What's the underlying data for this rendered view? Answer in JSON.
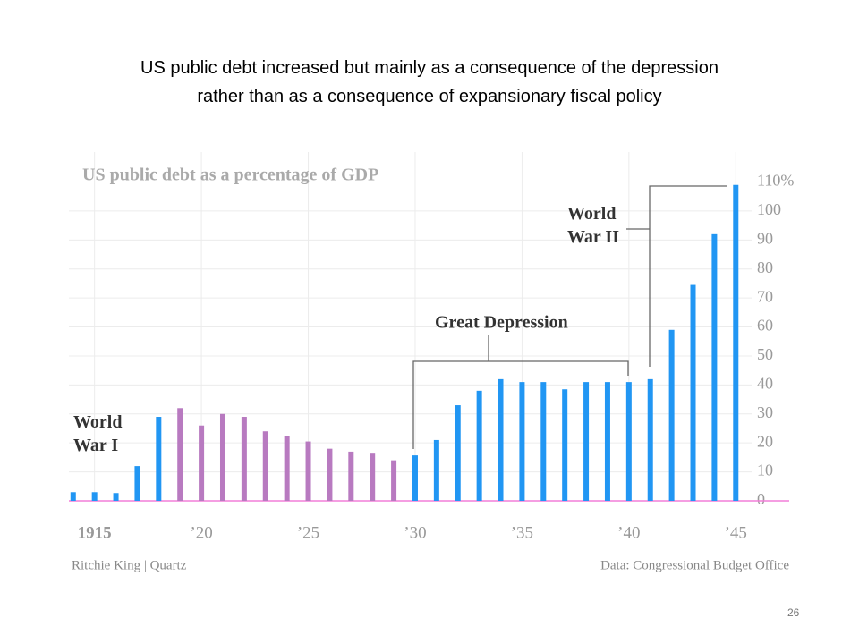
{
  "slide_title": [
    "US public debt increased but mainly as a consequence of the depression",
    "rather than as a consequence of expansionary fiscal policy"
  ],
  "page_number": "26",
  "chart_data": {
    "type": "bar",
    "title": "US public debt as a percentage of GDP",
    "source_left": "Ritchie King | Quartz",
    "source_right": "Data: Congressional Budget Office",
    "x": [
      1914,
      1915,
      1916,
      1917,
      1918,
      1919,
      1920,
      1921,
      1922,
      1923,
      1924,
      1925,
      1926,
      1927,
      1928,
      1929,
      1930,
      1931,
      1932,
      1933,
      1934,
      1935,
      1936,
      1937,
      1938,
      1939,
      1940,
      1941,
      1942,
      1943,
      1944,
      1945
    ],
    "values": [
      3,
      3,
      2.7,
      12,
      29,
      32,
      26,
      30,
      29,
      24,
      22.5,
      20.5,
      18,
      17,
      16.3,
      14,
      15.7,
      21,
      33,
      38,
      42,
      41,
      41,
      38.5,
      41,
      41,
      41,
      42,
      59,
      74.5,
      92,
      109
    ],
    "colors": [
      "#2196f3",
      "#2196f3",
      "#2196f3",
      "#2196f3",
      "#2196f3",
      "#b87ac0",
      "#b87ac0",
      "#b87ac0",
      "#b87ac0",
      "#b87ac0",
      "#b87ac0",
      "#b87ac0",
      "#b87ac0",
      "#b87ac0",
      "#b87ac0",
      "#b87ac0",
      "#2196f3",
      "#2196f3",
      "#2196f3",
      "#2196f3",
      "#2196f3",
      "#2196f3",
      "#2196f3",
      "#2196f3",
      "#2196f3",
      "#2196f3",
      "#2196f3",
      "#2196f3",
      "#2196f3",
      "#2196f3",
      "#2196f3",
      "#2196f3"
    ],
    "xlim": [
      1913.8,
      1947.5
    ],
    "xticks": [
      {
        "value": 1915,
        "label": "1915"
      },
      {
        "value": 1920,
        "label": "’20"
      },
      {
        "value": 1925,
        "label": "’25"
      },
      {
        "value": 1930,
        "label": "’30"
      },
      {
        "value": 1935,
        "label": "’35"
      },
      {
        "value": 1940,
        "label": "’40"
      },
      {
        "value": 1945,
        "label": "’45"
      }
    ],
    "ylim": [
      0,
      110
    ],
    "yticks": [
      0,
      10,
      20,
      30,
      40,
      50,
      60,
      70,
      80,
      90,
      100,
      {
        "value": 110,
        "label": "110%"
      }
    ],
    "grid": true,
    "annotations": [
      {
        "lines": [
          "World",
          "War I"
        ]
      },
      {
        "lines": [
          "Great Depression"
        ]
      },
      {
        "lines": [
          "World",
          "War II"
        ]
      }
    ]
  }
}
